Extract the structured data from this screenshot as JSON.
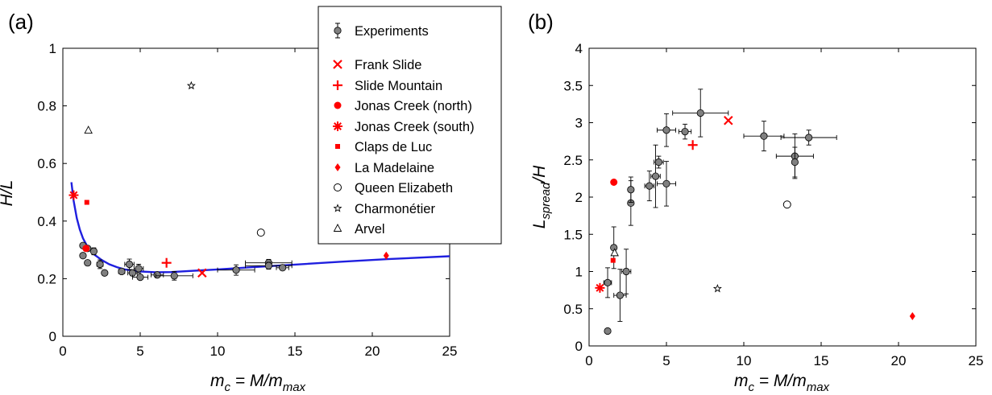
{
  "chart_data": [
    {
      "type": "scatter",
      "panel_label": "(a)",
      "xlabel_main": "m",
      "xlabel_sub": "c",
      "xlabel_mid": " = M/m",
      "xlabel_sub2": "max",
      "ylabel": "H/L",
      "xlim": [
        0,
        25
      ],
      "ylim": [
        0,
        1
      ],
      "xticks": [
        "0",
        "5",
        "10",
        "15",
        "20",
        "25"
      ],
      "yticks": [
        "0",
        "0.2",
        "0.4",
        "0.6",
        "0.8",
        "1"
      ],
      "grid": false,
      "legend_position": "top-right, between panels",
      "experiments": [
        {
          "x": 1.3,
          "y": 0.28,
          "xerr": 0,
          "yerr": 0
        },
        {
          "x": 1.3,
          "y": 0.315,
          "xerr": 0,
          "yerr": 0
        },
        {
          "x": 1.6,
          "y": 0.255,
          "xerr": 0,
          "yerr": 0
        },
        {
          "x": 1.6,
          "y": 0.305,
          "xerr": 0,
          "yerr": 0
        },
        {
          "x": 2.0,
          "y": 0.295,
          "xerr": 0,
          "yerr": 0.012
        },
        {
          "x": 2.4,
          "y": 0.25,
          "xerr": 0.2,
          "yerr": 0.015
        },
        {
          "x": 2.7,
          "y": 0.22,
          "xerr": 0,
          "yerr": 0
        },
        {
          "x": 3.8,
          "y": 0.225,
          "xerr": 0.2,
          "yerr": 0
        },
        {
          "x": 4.3,
          "y": 0.25,
          "xerr": 0.3,
          "yerr": 0.018
        },
        {
          "x": 4.5,
          "y": 0.22,
          "xerr": 0.3,
          "yerr": 0.01
        },
        {
          "x": 4.9,
          "y": 0.235,
          "xerr": 0.3,
          "yerr": 0.015
        },
        {
          "x": 5.0,
          "y": 0.205,
          "xerr": 0.5,
          "yerr": 0
        },
        {
          "x": 6.1,
          "y": 0.213,
          "xerr": 0.4,
          "yerr": 0
        },
        {
          "x": 7.2,
          "y": 0.21,
          "xerr": 1.2,
          "yerr": 0.015
        },
        {
          "x": 11.2,
          "y": 0.23,
          "xerr": 1.2,
          "yerr": 0.018
        },
        {
          "x": 13.3,
          "y": 0.255,
          "xerr": 1.5,
          "yerr": 0.012
        },
        {
          "x": 13.3,
          "y": 0.245,
          "xerr": 1.5,
          "yerr": 0.012
        },
        {
          "x": 14.2,
          "y": 0.238,
          "xerr": 0.4,
          "yerr": 0
        }
      ],
      "field_cases": [
        {
          "name": "Frank Slide",
          "x": 9.0,
          "y": 0.22
        },
        {
          "name": "Slide Mountain",
          "x": 6.7,
          "y": 0.255
        },
        {
          "name": "Jonas Creek (north)",
          "x": 1.5,
          "y": 0.305
        },
        {
          "name": "Jonas Creek (south)",
          "x": 0.7,
          "y": 0.49
        },
        {
          "name": "Claps de Luc",
          "x": 1.55,
          "y": 0.465
        },
        {
          "name": "La Madelaine",
          "x": 20.9,
          "y": 0.28
        },
        {
          "name": "Queen Elizabeth",
          "x": 12.8,
          "y": 0.36
        },
        {
          "name": "Charmonétier",
          "x": 8.3,
          "y": 0.87
        },
        {
          "name": "Arvel",
          "x": 1.65,
          "y": 0.715
        }
      ],
      "fit_curve": {
        "x": [
          0.55,
          0.7,
          0.9,
          1.1,
          1.3,
          1.6,
          2.0,
          2.5,
          3.0,
          3.5,
          4.0,
          5.0,
          6.0,
          7.0,
          8.0,
          10.0,
          12.0,
          15.0,
          18.0,
          21.0,
          25.0
        ],
        "y": [
          0.535,
          0.47,
          0.41,
          0.37,
          0.34,
          0.31,
          0.285,
          0.265,
          0.25,
          0.24,
          0.232,
          0.225,
          0.222,
          0.223,
          0.226,
          0.232,
          0.239,
          0.249,
          0.259,
          0.268,
          0.278
        ]
      }
    },
    {
      "type": "scatter",
      "panel_label": "(b)",
      "xlabel_main": "m",
      "xlabel_sub": "c",
      "xlabel_mid": " = M/m",
      "xlabel_sub2": "max",
      "ylabel_main": "L",
      "ylabel_sub": "spread",
      "ylabel_rest": "/H",
      "xlim": [
        0,
        25
      ],
      "ylim": [
        0,
        4
      ],
      "xticks": [
        "0",
        "5",
        "10",
        "15",
        "20",
        "25"
      ],
      "yticks": [
        "0",
        "0.5",
        "1",
        "1.5",
        "2",
        "2.5",
        "3",
        "3.5",
        "4"
      ],
      "grid": false,
      "experiments": [
        {
          "x": 1.2,
          "y": 0.2,
          "xerr": 0,
          "yerr": 0
        },
        {
          "x": 1.2,
          "y": 0.85,
          "xerr": 0.25,
          "yerr": 0.2
        },
        {
          "x": 1.6,
          "y": 1.32,
          "xerr": 0,
          "yerr": 0.28
        },
        {
          "x": 2.0,
          "y": 0.68,
          "xerr": 0.4,
          "yerr": 0.35
        },
        {
          "x": 2.4,
          "y": 1.0,
          "xerr": 0.3,
          "yerr": 0.3
        },
        {
          "x": 2.7,
          "y": 1.92,
          "xerr": 0,
          "yerr": 0.3
        },
        {
          "x": 2.7,
          "y": 2.1,
          "xerr": 0,
          "yerr": 0.17
        },
        {
          "x": 3.9,
          "y": 2.15,
          "xerr": 0.3,
          "yerr": 0.2
        },
        {
          "x": 4.3,
          "y": 2.28,
          "xerr": 0.3,
          "yerr": 0.42
        },
        {
          "x": 4.5,
          "y": 2.47,
          "xerr": 0.3,
          "yerr": 0.08
        },
        {
          "x": 5.0,
          "y": 2.18,
          "xerr": 0.6,
          "yerr": 0.3
        },
        {
          "x": 5.0,
          "y": 2.9,
          "xerr": 0.6,
          "yerr": 0.22
        },
        {
          "x": 6.2,
          "y": 2.88,
          "xerr": 0.4,
          "yerr": 0.1
        },
        {
          "x": 7.2,
          "y": 3.13,
          "xerr": 1.8,
          "yerr": 0.32
        },
        {
          "x": 11.3,
          "y": 2.82,
          "xerr": 1.3,
          "yerr": 0.2
        },
        {
          "x": 13.3,
          "y": 2.55,
          "xerr": 1.2,
          "yerr": 0.3
        },
        {
          "x": 13.3,
          "y": 2.47,
          "xerr": 0,
          "yerr": 0.2
        },
        {
          "x": 14.2,
          "y": 2.8,
          "xerr": 1.8,
          "yerr": 0.1
        }
      ],
      "field_cases": [
        {
          "name": "Frank Slide",
          "x": 9.0,
          "y": 3.03
        },
        {
          "name": "Slide Mountain",
          "x": 6.7,
          "y": 2.7
        },
        {
          "name": "Jonas Creek (north)",
          "x": 1.6,
          "y": 2.2
        },
        {
          "name": "Jonas Creek (south)",
          "x": 0.7,
          "y": 0.78
        },
        {
          "name": "Claps de Luc",
          "x": 1.55,
          "y": 1.15
        },
        {
          "name": "La Madelaine",
          "x": 20.9,
          "y": 0.4
        },
        {
          "name": "Queen Elizabeth",
          "x": 12.8,
          "y": 1.9
        },
        {
          "name": "Charmonétier",
          "x": 8.3,
          "y": 0.77
        },
        {
          "name": "Arvel",
          "x": 1.65,
          "y": 1.25
        }
      ]
    }
  ],
  "legend": {
    "items": [
      {
        "label": "Experiments",
        "marker": "grey-circle-errorbar"
      },
      {
        "label": "Frank Slide",
        "marker": "cross-x",
        "color": "#ff0000"
      },
      {
        "label": "Slide Mountain",
        "marker": "plus",
        "color": "#ff0000"
      },
      {
        "label": "Jonas Creek (north)",
        "marker": "filled-circle",
        "color": "#ff0000"
      },
      {
        "label": "Jonas Creek (south)",
        "marker": "asterisk",
        "color": "#ff0000"
      },
      {
        "label": "Claps de Luc",
        "marker": "filled-square",
        "color": "#ff0000"
      },
      {
        "label": "La Madelaine",
        "marker": "filled-diamond",
        "color": "#ff0000"
      },
      {
        "label": "Queen Elizabeth",
        "marker": "open-circle",
        "color": "#000000"
      },
      {
        "label": "Charmonétier",
        "marker": "open-star",
        "color": "#000000"
      },
      {
        "label": "Arvel",
        "marker": "open-triangle",
        "color": "#000000"
      }
    ]
  },
  "colors": {
    "field_red": "#ff0000",
    "experiment_fill": "#808080",
    "fit_line": "#1f1fdf"
  }
}
